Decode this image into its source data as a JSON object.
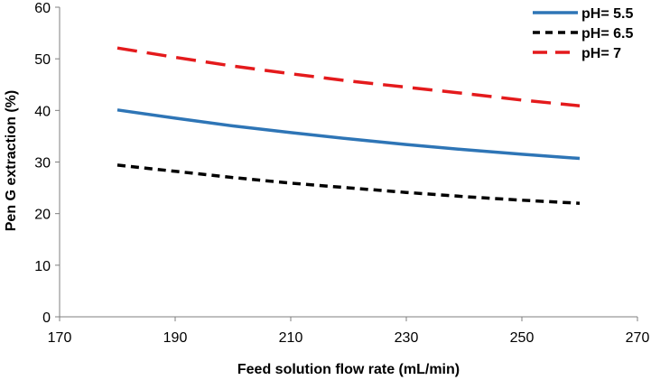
{
  "chart_data": {
    "type": "line",
    "title": "",
    "xlabel": "Feed solution flow rate (mL/min)",
    "ylabel": "Pen G extraction (%)",
    "xlim": [
      170,
      270
    ],
    "ylim": [
      0,
      60
    ],
    "xticks": [
      170,
      190,
      210,
      230,
      250,
      270
    ],
    "yticks": [
      0,
      10,
      20,
      30,
      40,
      50,
      60
    ],
    "grid": false,
    "legend_position": "top-right",
    "series": [
      {
        "name": "pH= 5.5",
        "color": "#2E75B6",
        "dash": "solid",
        "x": [
          180,
          190,
          200,
          210,
          220,
          230,
          240,
          250,
          260
        ],
        "y": [
          40.1,
          38.5,
          37.0,
          35.7,
          34.5,
          33.4,
          32.4,
          31.5,
          30.7
        ]
      },
      {
        "name": "pH= 6.5",
        "color": "#000000",
        "dash": "short-dash",
        "x": [
          180,
          190,
          200,
          210,
          220,
          230,
          240,
          250,
          260
        ],
        "y": [
          29.4,
          28.2,
          27.0,
          25.9,
          25.0,
          24.1,
          23.3,
          22.6,
          22.0
        ]
      },
      {
        "name": "pH= 7",
        "color": "#E41A1C",
        "dash": "long-dash",
        "x": [
          180,
          190,
          200,
          210,
          220,
          230,
          240,
          250,
          260
        ],
        "y": [
          52.1,
          50.3,
          48.6,
          47.1,
          45.7,
          44.5,
          43.3,
          42.0,
          40.9
        ]
      }
    ]
  }
}
